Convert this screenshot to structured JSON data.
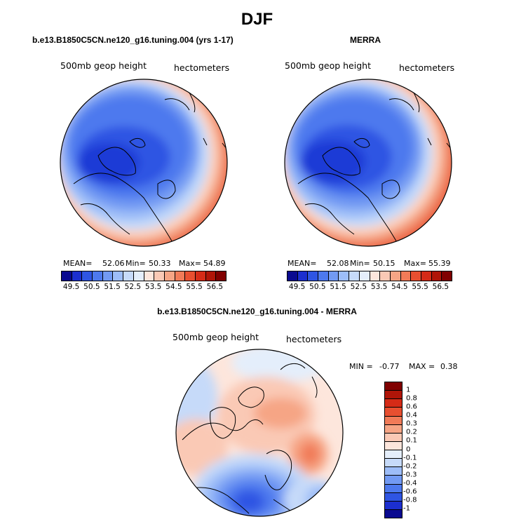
{
  "figure_title": "DJF",
  "panels": [
    {
      "title": "b.e13.B1850C5CN.ne120_g16.tuning.004 (yrs 1-17)",
      "field_label": "500mb geop height",
      "units_label": "hectometers",
      "mean_label": "MEAN=",
      "mean_value": "52.06",
      "min_label": "Min=",
      "min_value": "50.33",
      "max_label": "Max=",
      "max_value": "54.89"
    },
    {
      "title": "MERRA",
      "field_label": "500mb geop height",
      "units_label": "hectometers",
      "mean_label": "MEAN=",
      "mean_value": "52.08",
      "min_label": "Min=",
      "min_value": "50.15",
      "max_label": "Max=",
      "max_value": "55.39"
    }
  ],
  "difference_panel": {
    "title": "b.e13.B1850C5CN.ne120_g16.tuning.004 - MERRA",
    "field_label": "500mb geop height",
    "units_label": "hectometers",
    "min_label": "MIN =",
    "min_value": "-0.77",
    "max_label": "MAX =",
    "max_value": "0.38"
  },
  "colorbar_horizontal": {
    "labels": [
      "49.5",
      "50.5",
      "51.5",
      "52.5",
      "53.5",
      "54.5",
      "55.5",
      "56.5"
    ],
    "colors": [
      "#0a0a90",
      "#1c2fcf",
      "#2f55e3",
      "#4d79ee",
      "#729af3",
      "#9dbdf8",
      "#c6daf9",
      "#e4eefb",
      "#fde6dc",
      "#fac9b5",
      "#f6a585",
      "#f17b58",
      "#e84f30",
      "#d52b17",
      "#b01508",
      "#800000"
    ]
  },
  "colorbar_vertical": {
    "labels": [
      "1",
      "0.8",
      "0.6",
      "0.4",
      "0.3",
      "0.2",
      "0.1",
      "0",
      "-0.1",
      "-0.2",
      "-0.3",
      "-0.4",
      "-0.6",
      "-0.8",
      "-1"
    ],
    "colors": [
      "#800000",
      "#b01508",
      "#d52b17",
      "#e84f30",
      "#f17b58",
      "#f6a585",
      "#fac9b5",
      "#fde6dc",
      "#e4eefb",
      "#c6daf9",
      "#9dbdf8",
      "#729af3",
      "#4d79ee",
      "#2f55e3",
      "#1c2fcf",
      "#0a0a90"
    ]
  }
}
